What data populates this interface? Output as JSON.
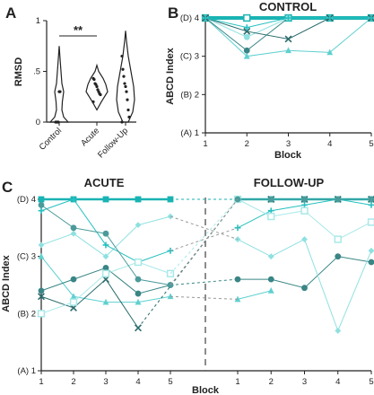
{
  "panels": {
    "a": {
      "letter": "A"
    },
    "b": {
      "letter": "B"
    },
    "c": {
      "letter": "C"
    }
  },
  "chart_data": [
    {
      "type": "violin",
      "panel": "A",
      "ylabel": "RMSD",
      "categories": [
        "Control",
        "Acute",
        "Follow-Up"
      ],
      "yticks": [
        0,
        0.5,
        1
      ],
      "yticklabels": [
        "0",
        ".5",
        "1"
      ],
      "ylim": [
        0,
        1
      ],
      "significance": {
        "from": "Control",
        "to": "Acute",
        "label": "**"
      },
      "points": {
        "Control": [
          0,
          0,
          0,
          0,
          0.3,
          0.3
        ],
        "Acute": [
          0.43,
          0.42,
          0.38,
          0.37,
          0.35,
          0.32,
          0.3,
          0.28,
          0.27,
          0.2
        ],
        "Follow-Up": [
          0.65,
          0.52,
          0.45,
          0.38,
          0.35,
          0.3,
          0.22,
          0.12,
          0.05,
          0
        ]
      }
    },
    {
      "type": "line",
      "panel": "B",
      "title": "CONTROL",
      "xlabel": "Block",
      "ylabel": "ABCD Index",
      "x": [
        1,
        2,
        3,
        4,
        5
      ],
      "yticks": [
        1,
        2,
        3,
        4
      ],
      "yticklabels": [
        "(A) 1",
        "(B) 2",
        "(C) 3",
        "(D) 4"
      ],
      "ylim": [
        1,
        4
      ],
      "series": [
        {
          "values": [
            4,
            4,
            4,
            4,
            4
          ]
        },
        {
          "values": [
            4,
            3.0,
            3.15,
            3.1,
            4
          ]
        },
        {
          "values": [
            4,
            3.15,
            4,
            4,
            4
          ]
        },
        {
          "values": [
            4,
            3.5,
            4,
            4,
            4
          ]
        },
        {
          "values": [
            4,
            3.65,
            3.45,
            4,
            4
          ]
        },
        {
          "values": [
            4,
            3.75,
            4,
            4,
            4
          ]
        }
      ]
    },
    {
      "type": "line",
      "panel": "C",
      "xlabel": "Block",
      "ylabel": "ABCD Index",
      "groups": [
        "ACUTE",
        "FOLLOW-UP"
      ],
      "x": [
        1,
        2,
        3,
        4,
        5
      ],
      "yticks": [
        1,
        2,
        3,
        4
      ],
      "yticklabels": [
        "(A) 1",
        "(B) 2",
        "(C) 3",
        "(D) 4"
      ],
      "ylim": [
        1,
        4
      ],
      "series": [
        {
          "acute": [
            4,
            4,
            4,
            4,
            4
          ],
          "followup": [
            4,
            4,
            4,
            4,
            4
          ]
        },
        {
          "acute": [
            3,
            2.3,
            2.2,
            2.2,
            2.3
          ],
          "followup": [
            2.25,
            2.4,
            null,
            null,
            null
          ]
        },
        {
          "acute": [
            2.4,
            2.6,
            2.8,
            2.35,
            2.5
          ],
          "followup": [
            2.6,
            2.6,
            2.45,
            3.0,
            2.9
          ]
        },
        {
          "acute": [
            3.2,
            3.4,
            3.0,
            3.55,
            3.7
          ],
          "followup": [
            3.3,
            3.0,
            3.3,
            1.7,
            3.1
          ]
        },
        {
          "acute": [
            2.3,
            2.1,
            2.6,
            1.75,
            null
          ],
          "followup": [
            4,
            4,
            4,
            4,
            4
          ]
        },
        {
          "acute": [
            3.8,
            4,
            3.2,
            2.9,
            3.1
          ],
          "followup": [
            3.5,
            3.8,
            3.9,
            4,
            3.9
          ]
        },
        {
          "acute": [
            2.0,
            2.2,
            2.7,
            2.9,
            2.7
          ],
          "followup": [
            4,
            3.7,
            3.8,
            3.3,
            3.6
          ]
        },
        {
          "acute": [
            3.9,
            3.5,
            3.4,
            2.6,
            2.5
          ],
          "followup": [
            4,
            4,
            4,
            4,
            4
          ]
        }
      ]
    }
  ]
}
